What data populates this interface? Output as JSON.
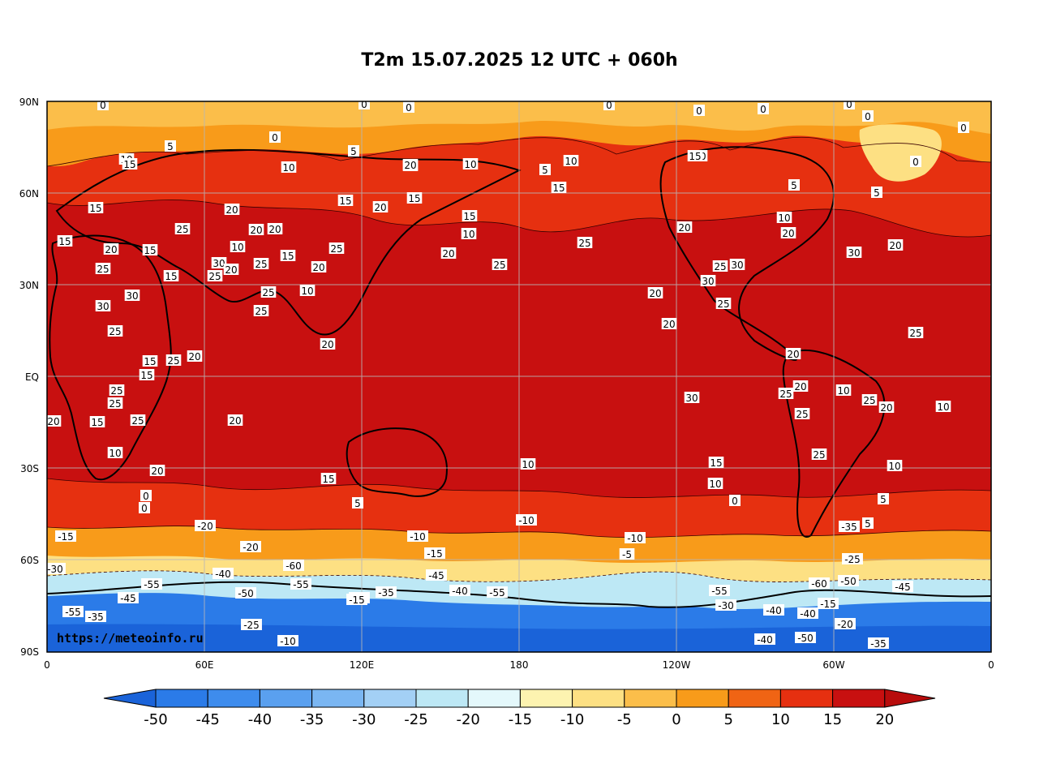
{
  "title": "T2m 15.07.2025 12 UTC + 060h",
  "watermark": "https://meteoinfo.ru",
  "lat_labels": [
    "90N",
    "60N",
    "30N",
    "EQ",
    "30S",
    "60S",
    "90S"
  ],
  "lon_labels": [
    "0",
    "60E",
    "120E",
    "180",
    "120W",
    "60W",
    "0"
  ],
  "colorbar": {
    "ticks": [
      "-50",
      "-45",
      "-40",
      "-35",
      "-30",
      "-25",
      "-20",
      "-15",
      "-10",
      "-5",
      "0",
      "5",
      "10",
      "15",
      "20"
    ],
    "colors": [
      "#1a63d9",
      "#2b7be8",
      "#3e8ced",
      "#5aa0ef",
      "#7ab6f2",
      "#a3d0f5",
      "#bde8f5",
      "#e4f8fb",
      "#fdf3b0",
      "#fde083",
      "#fbbe4a",
      "#f89b1a",
      "#f06414",
      "#e63010",
      "#c81010",
      "#b80c0c"
    ]
  },
  "bands": [
    {
      "name": "polar-north",
      "color": "#fbbe4a"
    },
    {
      "name": "arctic-orange",
      "color": "#f89b1a"
    },
    {
      "name": "north-red",
      "color": "#e63010"
    },
    {
      "name": "tropics",
      "color": "#c81010"
    },
    {
      "name": "south-red",
      "color": "#e63010"
    },
    {
      "name": "south-orange",
      "color": "#f89b1a"
    },
    {
      "name": "south-yellow",
      "color": "#fde083"
    },
    {
      "name": "antarctic-pale",
      "color": "#bde8f5"
    },
    {
      "name": "antarctic-blue",
      "color": "#2b7be8"
    }
  ],
  "contour_labels": [
    "0",
    "0",
    "0",
    "0",
    "0",
    "0",
    "0",
    "0",
    "0",
    "5",
    "5",
    "10",
    "15",
    "10",
    "0",
    "10",
    "5",
    "10",
    "10",
    "10",
    "5",
    "0",
    "5",
    "15",
    "20",
    "15",
    "15",
    "15",
    "20",
    "20",
    "15",
    "10",
    "10",
    "25",
    "20",
    "20",
    "25",
    "15",
    "10",
    "20",
    "20",
    "15",
    "25",
    "15",
    "30",
    "20",
    "25",
    "15",
    "25",
    "20",
    "10",
    "20",
    "25",
    "30",
    "20",
    "30",
    "30",
    "25",
    "25",
    "30",
    "15",
    "25",
    "30",
    "20",
    "25",
    "25",
    "25",
    "20",
    "20",
    "25",
    "20",
    "20",
    "15",
    "15",
    "25",
    "20",
    "10",
    "25",
    "20",
    "25",
    "25",
    "30",
    "25",
    "20",
    "10",
    "25",
    "25",
    "20",
    "20",
    "15",
    "25",
    "10",
    "20",
    "15",
    "10",
    "10",
    "15",
    "10",
    "5",
    "0",
    "0",
    "5",
    "0",
    "5",
    "-10",
    "-20",
    "-15",
    "-10",
    "-20",
    "-15",
    "-5",
    "-35",
    "-10",
    "-25",
    "-30",
    "-55",
    "-40",
    "-60",
    "-55",
    "-50",
    "-45",
    "-40",
    "-55",
    "-50",
    "-55",
    "-45",
    "-35",
    "-25",
    "-20",
    "-10",
    "-15",
    "-35",
    "-50",
    "-40",
    "-55",
    "-45",
    "-40",
    "-15",
    "-30",
    "-60",
    "-20",
    "-40",
    "-35"
  ]
}
